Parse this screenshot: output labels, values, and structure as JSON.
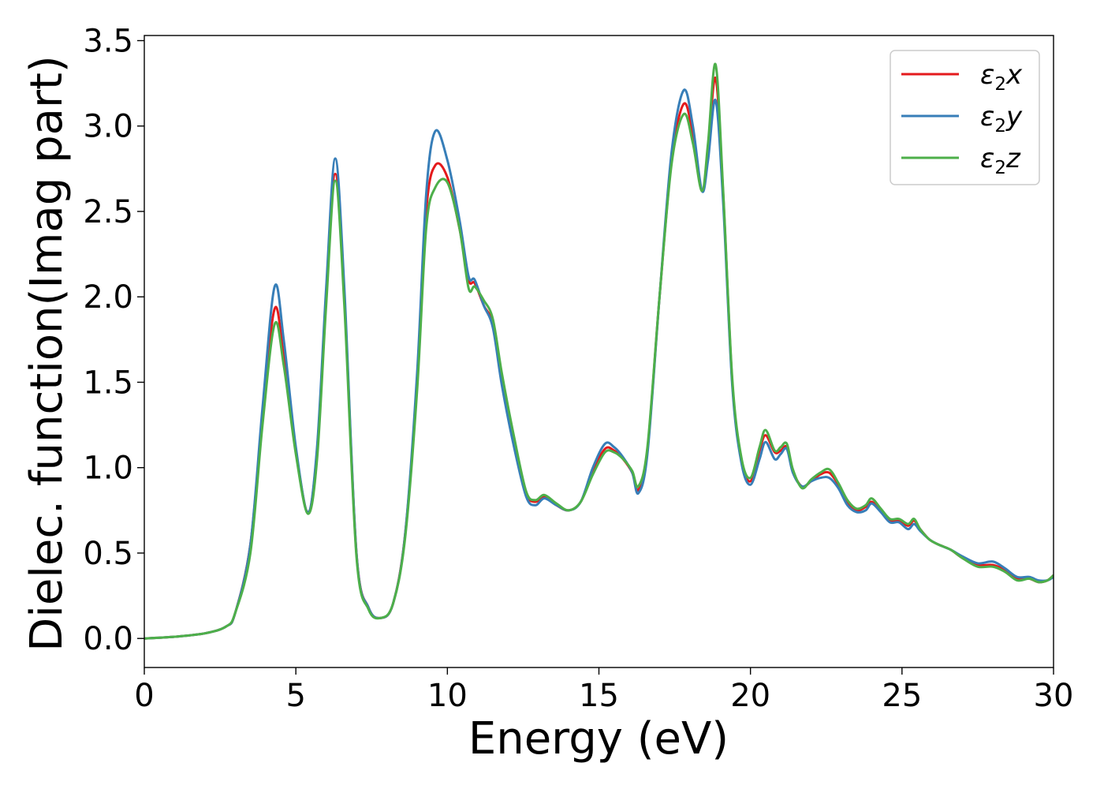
{
  "chart_data": {
    "type": "line",
    "title": "",
    "xlabel": "Energy (eV)",
    "ylabel": "Dielec. function(Imag part)",
    "xlim": [
      0,
      30
    ],
    "ylim": [
      -0.17,
      3.53
    ],
    "xticks": [
      0,
      5,
      10,
      15,
      20,
      25,
      30
    ],
    "xtick_labels": [
      "0",
      "5",
      "10",
      "15",
      "20",
      "25",
      "30"
    ],
    "yticks": [
      0.0,
      0.5,
      1.0,
      1.5,
      2.0,
      2.5,
      3.0,
      3.5
    ],
    "ytick_labels": [
      "0.0",
      "0.5",
      "1.0",
      "1.5",
      "2.0",
      "2.5",
      "3.0",
      "3.5"
    ],
    "grid": false,
    "legend_position": "top-right",
    "series": [
      {
        "name": "ε₂x",
        "legend_base": "ε",
        "legend_sub": "2",
        "legend_suffix": "x",
        "color": "#e41a1c",
        "x": [
          0,
          1,
          2,
          2.7,
          3.0,
          3.5,
          3.9,
          4.3,
          4.6,
          5.0,
          5.4,
          5.7,
          6.0,
          6.3,
          6.6,
          7.0,
          7.4,
          7.8,
          8.2,
          8.6,
          9.0,
          9.3,
          9.6,
          10.0,
          10.4,
          10.7,
          10.9,
          11.2,
          11.5,
          11.8,
          12.2,
          12.6,
          12.9,
          13.2,
          13.6,
          14.0,
          14.4,
          14.8,
          15.2,
          15.5,
          15.8,
          16.1,
          16.3,
          16.6,
          17.0,
          17.4,
          17.8,
          18.1,
          18.4,
          18.6,
          18.85,
          19.1,
          19.4,
          19.7,
          20.0,
          20.3,
          20.5,
          20.8,
          21.0,
          21.2,
          21.4,
          21.7,
          22.0,
          22.3,
          22.6,
          22.9,
          23.2,
          23.5,
          23.8,
          24.0,
          24.3,
          24.6,
          24.9,
          25.2,
          25.4,
          25.6,
          25.9,
          26.2,
          26.6,
          27.0,
          27.5,
          28.0,
          28.4,
          28.8,
          29.2,
          29.5,
          29.8,
          30.0
        ],
        "y": [
          0.0,
          0.01,
          0.03,
          0.07,
          0.15,
          0.55,
          1.3,
          1.93,
          1.65,
          1.1,
          0.74,
          1.1,
          2.0,
          2.72,
          2.0,
          0.5,
          0.18,
          0.12,
          0.2,
          0.6,
          1.5,
          2.5,
          2.77,
          2.7,
          2.4,
          2.1,
          2.08,
          1.95,
          1.84,
          1.5,
          1.15,
          0.85,
          0.8,
          0.83,
          0.78,
          0.75,
          0.8,
          0.98,
          1.11,
          1.1,
          1.05,
          0.97,
          0.87,
          1.1,
          2.0,
          2.8,
          3.13,
          2.95,
          2.62,
          2.85,
          3.28,
          2.6,
          1.5,
          1.05,
          0.92,
          1.1,
          1.19,
          1.09,
          1.1,
          1.12,
          0.98,
          0.89,
          0.92,
          0.96,
          0.97,
          0.9,
          0.8,
          0.75,
          0.77,
          0.8,
          0.75,
          0.69,
          0.69,
          0.66,
          0.69,
          0.64,
          0.58,
          0.55,
          0.52,
          0.47,
          0.43,
          0.43,
          0.4,
          0.35,
          0.35,
          0.33,
          0.34,
          0.37
        ]
      },
      {
        "name": "ε₂y",
        "legend_base": "ε",
        "legend_sub": "2",
        "legend_suffix": "y",
        "color": "#377eb8",
        "x": [
          0,
          1,
          2,
          2.7,
          3.0,
          3.5,
          3.9,
          4.3,
          4.6,
          5.0,
          5.4,
          5.7,
          6.0,
          6.3,
          6.6,
          7.0,
          7.4,
          7.8,
          8.2,
          8.6,
          9.0,
          9.3,
          9.6,
          10.0,
          10.4,
          10.7,
          10.9,
          11.2,
          11.5,
          11.8,
          12.2,
          12.6,
          12.9,
          13.2,
          13.6,
          14.0,
          14.4,
          14.8,
          15.2,
          15.5,
          15.8,
          16.1,
          16.3,
          16.6,
          17.0,
          17.4,
          17.8,
          18.1,
          18.4,
          18.6,
          18.85,
          19.1,
          19.4,
          19.7,
          20.0,
          20.3,
          20.5,
          20.8,
          21.0,
          21.2,
          21.4,
          21.7,
          22.0,
          22.3,
          22.6,
          22.9,
          23.2,
          23.5,
          23.8,
          24.0,
          24.3,
          24.6,
          24.9,
          25.2,
          25.4,
          25.6,
          25.9,
          26.2,
          26.6,
          27.0,
          27.5,
          28.0,
          28.4,
          28.8,
          29.2,
          29.5,
          29.8,
          30.0
        ],
        "y": [
          0.0,
          0.01,
          0.03,
          0.07,
          0.15,
          0.55,
          1.35,
          2.06,
          1.75,
          1.12,
          0.74,
          1.12,
          2.05,
          2.81,
          2.05,
          0.5,
          0.18,
          0.12,
          0.2,
          0.6,
          1.55,
          2.6,
          2.97,
          2.8,
          2.45,
          2.12,
          2.1,
          1.95,
          1.82,
          1.48,
          1.12,
          0.83,
          0.78,
          0.82,
          0.78,
          0.75,
          0.8,
          1.0,
          1.14,
          1.12,
          1.06,
          0.97,
          0.85,
          1.08,
          2.0,
          2.85,
          3.21,
          3.0,
          2.62,
          2.8,
          3.15,
          2.55,
          1.48,
          1.03,
          0.9,
          1.05,
          1.15,
          1.05,
          1.08,
          1.11,
          0.97,
          0.89,
          0.92,
          0.94,
          0.94,
          0.88,
          0.78,
          0.74,
          0.75,
          0.79,
          0.74,
          0.68,
          0.68,
          0.64,
          0.67,
          0.63,
          0.58,
          0.55,
          0.52,
          0.48,
          0.44,
          0.45,
          0.41,
          0.36,
          0.36,
          0.34,
          0.34,
          0.36
        ]
      },
      {
        "name": "ε₂z",
        "legend_base": "ε",
        "legend_sub": "2",
        "legend_suffix": "z",
        "color": "#4daf4a",
        "x": [
          0,
          1,
          2,
          2.7,
          3.0,
          3.5,
          3.9,
          4.3,
          4.6,
          5.0,
          5.4,
          5.7,
          6.0,
          6.3,
          6.6,
          7.0,
          7.4,
          7.8,
          8.2,
          8.6,
          9.0,
          9.3,
          9.6,
          10.0,
          10.4,
          10.7,
          10.9,
          11.2,
          11.5,
          11.8,
          12.2,
          12.6,
          12.9,
          13.2,
          13.6,
          14.0,
          14.4,
          14.8,
          15.2,
          15.5,
          15.8,
          16.1,
          16.3,
          16.6,
          17.0,
          17.4,
          17.8,
          18.1,
          18.4,
          18.6,
          18.85,
          19.1,
          19.4,
          19.7,
          20.0,
          20.3,
          20.5,
          20.8,
          21.0,
          21.2,
          21.4,
          21.7,
          22.0,
          22.3,
          22.6,
          22.9,
          23.2,
          23.5,
          23.8,
          24.0,
          24.3,
          24.6,
          24.9,
          25.2,
          25.4,
          25.6,
          25.9,
          26.2,
          26.6,
          27.0,
          27.5,
          28.0,
          28.4,
          28.8,
          29.2,
          29.5,
          29.8,
          30.0
        ],
        "y": [
          0.0,
          0.01,
          0.03,
          0.07,
          0.15,
          0.5,
          1.25,
          1.84,
          1.6,
          1.08,
          0.73,
          1.05,
          1.95,
          2.68,
          1.95,
          0.48,
          0.17,
          0.12,
          0.2,
          0.58,
          1.45,
          2.4,
          2.64,
          2.67,
          2.4,
          2.05,
          2.06,
          1.98,
          1.87,
          1.55,
          1.18,
          0.86,
          0.81,
          0.84,
          0.79,
          0.75,
          0.8,
          0.96,
          1.09,
          1.09,
          1.05,
          0.98,
          0.89,
          1.12,
          2.0,
          2.78,
          3.07,
          2.9,
          2.62,
          2.9,
          3.36,
          2.62,
          1.52,
          1.06,
          0.94,
          1.12,
          1.22,
          1.1,
          1.12,
          1.14,
          0.99,
          0.88,
          0.93,
          0.97,
          0.99,
          0.91,
          0.81,
          0.76,
          0.78,
          0.82,
          0.76,
          0.7,
          0.7,
          0.67,
          0.7,
          0.64,
          0.58,
          0.55,
          0.52,
          0.47,
          0.42,
          0.42,
          0.39,
          0.34,
          0.35,
          0.33,
          0.34,
          0.37
        ]
      }
    ]
  }
}
